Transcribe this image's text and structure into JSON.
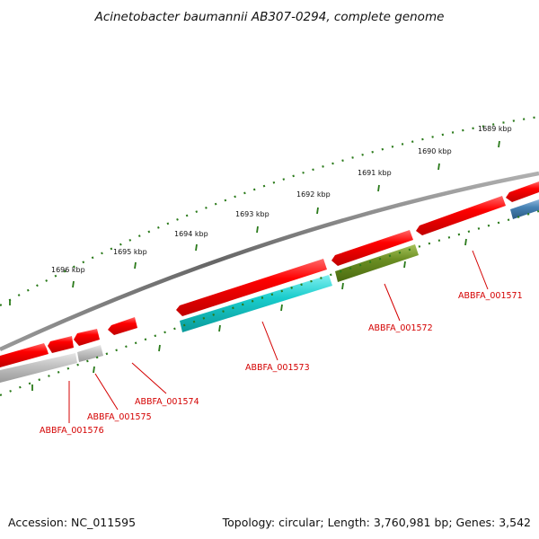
{
  "title": "Acinetobacter baumannii AB307-0294, complete genome",
  "footer": {
    "accession": "Accession: NC_011595",
    "topology": "Topology: circular; Length: 3,760,981 bp; Genes: 3,542"
  },
  "ticks": [
    "1689 kbp",
    "1690 kbp",
    "1691 kbp",
    "1692 kbp",
    "1693 kbp",
    "1694 kbp",
    "1695 kbp",
    "1696 kbp"
  ],
  "genes": [
    {
      "id": "ABBFA_001571",
      "color": "#e8000b"
    },
    {
      "id": "ABBFA_001572",
      "color": "#6b8e23"
    },
    {
      "id": "ABBFA_001573",
      "color": "#1ec8c8"
    },
    {
      "id": "ABBFA_001574",
      "color": "#e8000b"
    },
    {
      "id": "ABBFA_001575",
      "color": "#e8000b"
    },
    {
      "id": "ABBFA_001576",
      "color": "#e8000b"
    }
  ],
  "colors": {
    "forward_strand": "#e8000b",
    "reverse_cds": "#1ec8c8",
    "reverse_other": "#6b8e23",
    "reverse_blue": "#4682b4",
    "reverse_grey": "#bbbbbb",
    "backbone": "#777777",
    "ticks": "#2a7a1a",
    "label": "#d40000"
  }
}
